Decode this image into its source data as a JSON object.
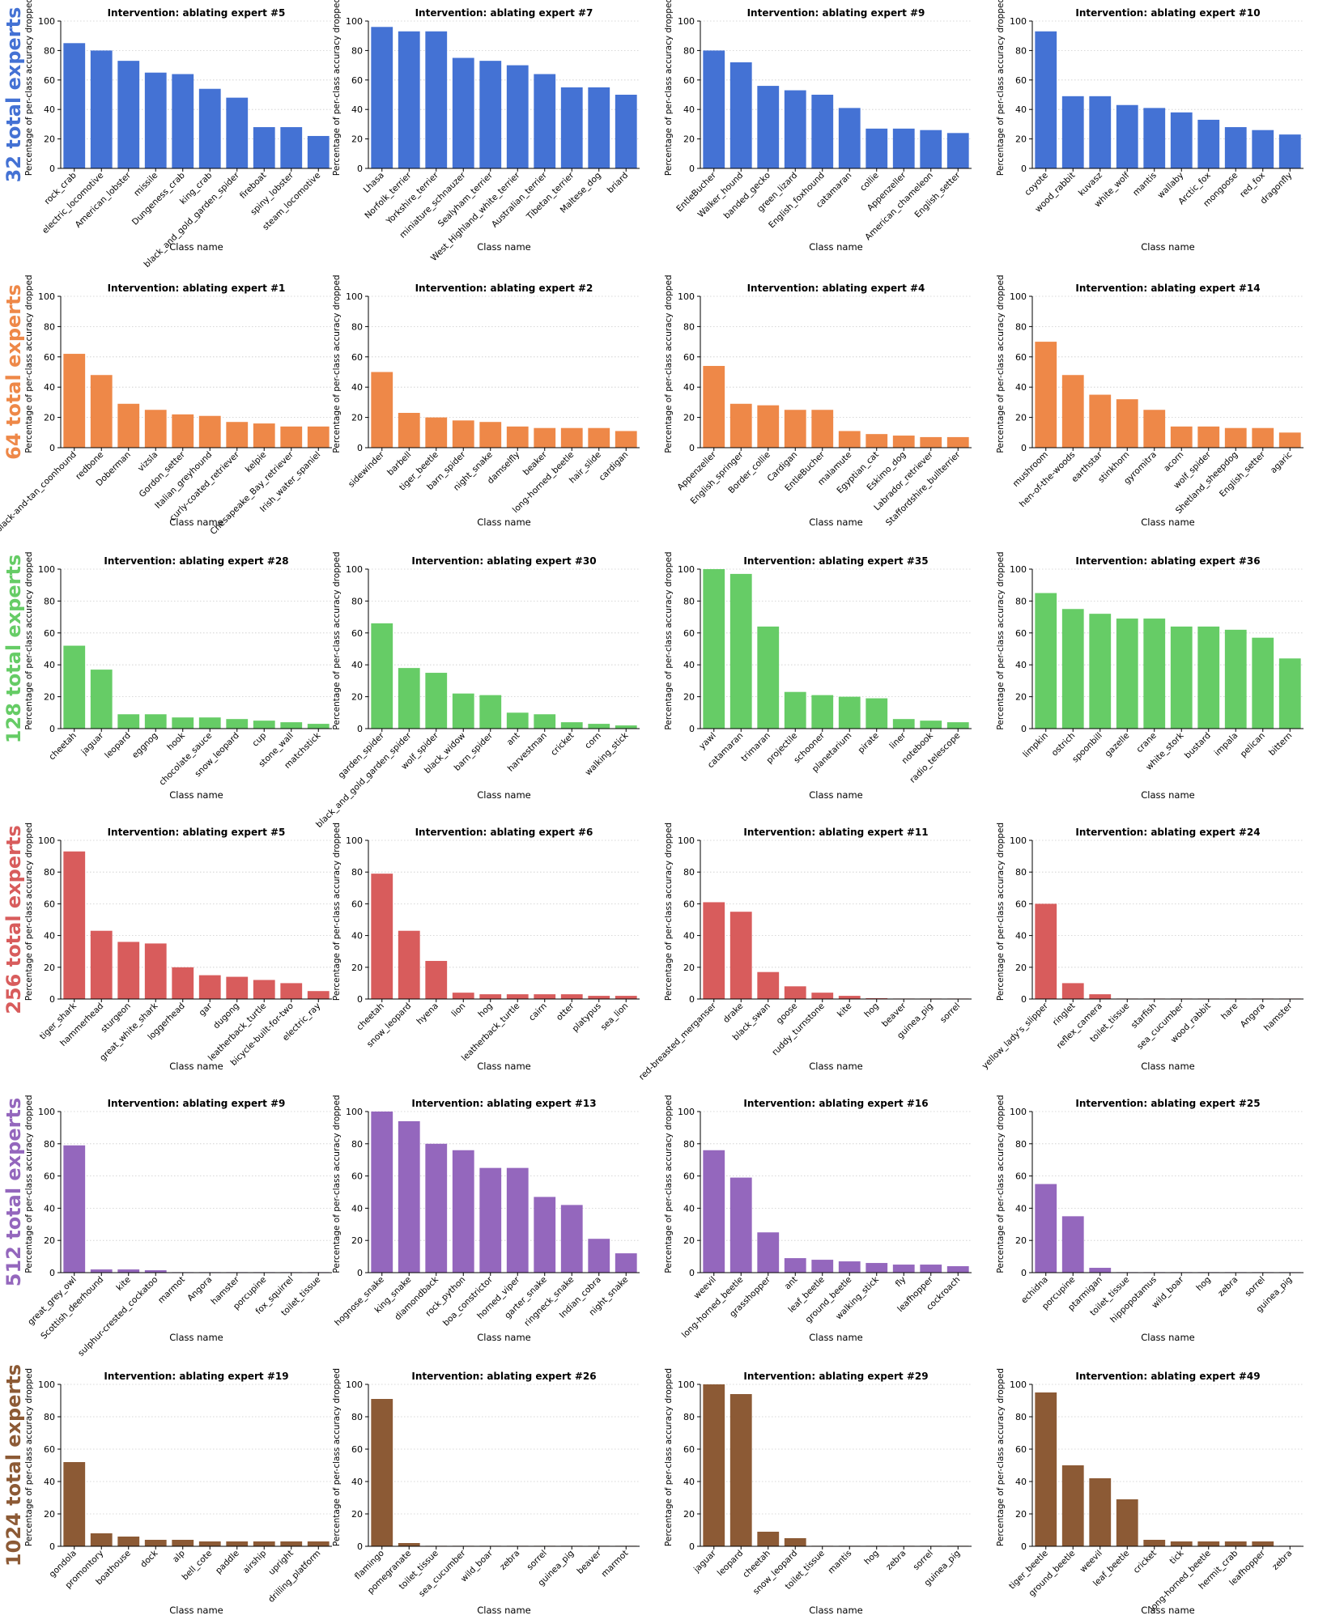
{
  "chart_data": [
    {
      "type": "bar",
      "title": "Intervention: ablating expert #5",
      "xlabel": "Class name",
      "ylabel": "Percentage of per-class accuracy dropped",
      "ylim": [
        0,
        100
      ],
      "yticks": [
        0,
        20,
        40,
        60,
        80,
        100
      ],
      "color": "#4472d4",
      "categories": [
        "rock_crab",
        "electric_locomotive",
        "American_lobster",
        "missile",
        "Dungeness_crab",
        "king_crab",
        "black_and_gold_garden_spider",
        "fireboat",
        "spiny_lobster",
        "steam_locomotive"
      ],
      "values": [
        85,
        80,
        73,
        65,
        64,
        54,
        48,
        28,
        28,
        22
      ]
    },
    {
      "type": "bar",
      "title": "Intervention: ablating expert #7",
      "xlabel": "Class name",
      "ylabel": "Percentage of per-class accuracy dropped",
      "ylim": [
        0,
        100
      ],
      "yticks": [
        0,
        20,
        40,
        60,
        80,
        100
      ],
      "color": "#4472d4",
      "categories": [
        "Lhasa",
        "Norfolk_terrier",
        "Yorkshire_terrier",
        "miniature_schnauzer",
        "Sealyham_terrier",
        "West_Highland_white_terrier",
        "Australian_terrier",
        "Tibetan_terrier",
        "Maltese_dog",
        "briard"
      ],
      "values": [
        96,
        93,
        93,
        75,
        73,
        70,
        64,
        55,
        55,
        50
      ]
    },
    {
      "type": "bar",
      "title": "Intervention: ablating expert #9",
      "xlabel": "Class name",
      "ylabel": "Percentage of per-class accuracy dropped",
      "ylim": [
        0,
        100
      ],
      "yticks": [
        0,
        20,
        40,
        60,
        80,
        100
      ],
      "color": "#4472d4",
      "categories": [
        "EntleBucher",
        "Walker_hound",
        "banded_gecko",
        "green_lizard",
        "English_foxhound",
        "catamaran",
        "collie",
        "Appenzeller",
        "American_chameleon",
        "English_setter"
      ],
      "values": [
        80,
        72,
        56,
        53,
        50,
        41,
        27,
        27,
        26,
        24
      ]
    },
    {
      "type": "bar",
      "title": "Intervention: ablating expert #10",
      "xlabel": "Class name",
      "ylabel": "Percentage of per-class accuracy dropped",
      "ylim": [
        0,
        100
      ],
      "yticks": [
        0,
        20,
        40,
        60,
        80,
        100
      ],
      "color": "#4472d4",
      "categories": [
        "coyote",
        "wood_rabbit",
        "kuvasz",
        "white_wolf",
        "mantis",
        "wallaby",
        "Arctic_fox",
        "mongoose",
        "red_fox",
        "dragonfly"
      ],
      "values": [
        93,
        49,
        49,
        43,
        41,
        38,
        33,
        28,
        26,
        23
      ]
    },
    {
      "type": "bar",
      "title": "Intervention: ablating expert #1",
      "xlabel": "Class name",
      "ylabel": "Percentage of per-class accuracy dropped",
      "ylim": [
        0,
        100
      ],
      "yticks": [
        0,
        20,
        40,
        60,
        80,
        100
      ],
      "color": "#ee8848",
      "categories": [
        "black-and-tan_coonhound",
        "redbone",
        "Doberman",
        "vizsla",
        "Gordon_setter",
        "Italian_greyhound",
        "curly-coated_retriever",
        "kelpie",
        "Chesapeake_Bay_retriever",
        "Irish_water_spaniel"
      ],
      "values": [
        62,
        48,
        29,
        25,
        22,
        21,
        17,
        16,
        14,
        14
      ]
    },
    {
      "type": "bar",
      "title": "Intervention: ablating expert #2",
      "xlabel": "Class name",
      "ylabel": "Percentage of per-class accuracy dropped",
      "ylim": [
        0,
        100
      ],
      "yticks": [
        0,
        20,
        40,
        60,
        80,
        100
      ],
      "color": "#ee8848",
      "categories": [
        "sidewinder",
        "barbell",
        "tiger_beetle",
        "barn_spider",
        "night_snake",
        "damselfly",
        "beaker",
        "long-horned_beetle",
        "hair_slide",
        "cardigan"
      ],
      "values": [
        50,
        23,
        20,
        18,
        17,
        14,
        13,
        13,
        13,
        11
      ]
    },
    {
      "type": "bar",
      "title": "Intervention: ablating expert #4",
      "xlabel": "Class name",
      "ylabel": "Percentage of per-class accuracy dropped",
      "ylim": [
        0,
        100
      ],
      "yticks": [
        0,
        20,
        40,
        60,
        80,
        100
      ],
      "color": "#ee8848",
      "categories": [
        "Appenzeller",
        "English_springer",
        "Border_collie",
        "Cardigan",
        "EntleBucher",
        "malamute",
        "Egyptian_cat",
        "Eskimo_dog",
        "Labrador_retriever",
        "Staffordshire_bullterrier"
      ],
      "values": [
        54,
        29,
        28,
        25,
        25,
        11,
        9,
        8,
        7,
        7
      ]
    },
    {
      "type": "bar",
      "title": "Intervention: ablating expert #14",
      "xlabel": "Class name",
      "ylabel": "Percentage of per-class accuracy dropped",
      "ylim": [
        0,
        100
      ],
      "yticks": [
        0,
        20,
        40,
        60,
        80,
        100
      ],
      "color": "#ee8848",
      "categories": [
        "mushroom",
        "hen-of-the-woods",
        "earthstar",
        "stinkhorn",
        "gyromitra",
        "acorn",
        "wolf_spider",
        "Shetland_sheepdog",
        "English_setter",
        "agaric"
      ],
      "values": [
        70,
        48,
        35,
        32,
        25,
        14,
        14,
        13,
        13,
        10
      ]
    },
    {
      "type": "bar",
      "title": "Intervention: ablating expert #28",
      "xlabel": "Class name",
      "ylabel": "Percentage of per-class accuracy dropped",
      "ylim": [
        0,
        100
      ],
      "yticks": [
        0,
        20,
        40,
        60,
        80,
        100
      ],
      "color": "#66cc66",
      "categories": [
        "cheetah",
        "jaguar",
        "leopard",
        "eggnog",
        "hook",
        "chocolate_sauce",
        "snow_leopard",
        "cup",
        "stone_wall",
        "matchstick"
      ],
      "values": [
        52,
        37,
        9,
        9,
        7,
        7,
        6,
        5,
        4,
        3
      ]
    },
    {
      "type": "bar",
      "title": "Intervention: ablating expert #30",
      "xlabel": "Class name",
      "ylabel": "Percentage of per-class accuracy dropped",
      "ylim": [
        0,
        100
      ],
      "yticks": [
        0,
        20,
        40,
        60,
        80,
        100
      ],
      "color": "#66cc66",
      "categories": [
        "garden_spider",
        "black_and_gold_garden_spider",
        "wolf_spider",
        "black_widow",
        "barn_spider",
        "ant",
        "harvestman",
        "cricket",
        "corn",
        "walking_stick"
      ],
      "values": [
        66,
        38,
        35,
        22,
        21,
        10,
        9,
        4,
        3,
        2
      ]
    },
    {
      "type": "bar",
      "title": "Intervention: ablating expert #35",
      "xlabel": "Class name",
      "ylabel": "Percentage of per-class accuracy dropped",
      "ylim": [
        0,
        100
      ],
      "yticks": [
        0,
        20,
        40,
        60,
        80,
        100
      ],
      "color": "#66cc66",
      "categories": [
        "yawl",
        "catamaran",
        "trimaran",
        "projectile",
        "schooner",
        "planetarium",
        "pirate",
        "liner",
        "notebook",
        "radio_telescope"
      ],
      "values": [
        100,
        97,
        64,
        23,
        21,
        20,
        19,
        6,
        5,
        4
      ]
    },
    {
      "type": "bar",
      "title": "Intervention: ablating expert #36",
      "xlabel": "Class name",
      "ylabel": "Percentage of per-class accuracy dropped",
      "ylim": [
        0,
        100
      ],
      "yticks": [
        0,
        20,
        40,
        60,
        80,
        100
      ],
      "color": "#66cc66",
      "categories": [
        "limpkin",
        "ostrich",
        "spoonbill",
        "gazelle",
        "crane",
        "white_stork",
        "bustard",
        "impala",
        "pelican",
        "bittern"
      ],
      "values": [
        85,
        75,
        72,
        69,
        69,
        64,
        64,
        62,
        57,
        44
      ]
    },
    {
      "type": "bar",
      "title": "Intervention: ablating expert #5",
      "xlabel": "Class name",
      "ylabel": "Percentage of per-class accuracy dropped",
      "ylim": [
        0,
        100
      ],
      "yticks": [
        0,
        20,
        40,
        60,
        80,
        100
      ],
      "color": "#d85c5c",
      "categories": [
        "tiger_shark",
        "hammerhead",
        "sturgeon",
        "great_white_shark",
        "loggerhead",
        "gar",
        "dugong",
        "leatherback_turtle",
        "bicycle-built-for-two",
        "electric_ray"
      ],
      "values": [
        93,
        43,
        36,
        35,
        20,
        15,
        14,
        12,
        10,
        5
      ]
    },
    {
      "type": "bar",
      "title": "Intervention: ablating expert #6",
      "xlabel": "Class name",
      "ylabel": "Percentage of per-class accuracy dropped",
      "ylim": [
        0,
        100
      ],
      "yticks": [
        0,
        20,
        40,
        60,
        80,
        100
      ],
      "color": "#d85c5c",
      "categories": [
        "cheetah",
        "snow_leopard",
        "hyena",
        "lion",
        "hog",
        "leatherback_turtle",
        "cairn",
        "otter",
        "platypus",
        "sea_lion"
      ],
      "values": [
        79,
        43,
        24,
        4,
        3,
        3,
        3,
        3,
        2,
        2
      ]
    },
    {
      "type": "bar",
      "title": "Intervention: ablating expert #11",
      "xlabel": "Class name",
      "ylabel": "Percentage of per-class accuracy dropped",
      "ylim": [
        0,
        100
      ],
      "yticks": [
        0,
        20,
        40,
        60,
        80,
        100
      ],
      "color": "#d85c5c",
      "categories": [
        "red-breasted_merganser",
        "drake",
        "black_swan",
        "goose",
        "ruddy_turnstone",
        "kite",
        "hog",
        "beaver",
        "guinea_pig",
        "sorrel"
      ],
      "values": [
        61,
        55,
        17,
        8,
        4,
        2,
        0.5,
        0.3,
        0.3,
        0.3
      ]
    },
    {
      "type": "bar",
      "title": "Intervention: ablating expert #24",
      "xlabel": "Class name",
      "ylabel": "Percentage of per-class accuracy dropped",
      "ylim": [
        0,
        100
      ],
      "yticks": [
        0,
        20,
        40,
        60,
        80,
        100
      ],
      "color": "#d85c5c",
      "categories": [
        "yellow_lady's_slipper",
        "ringlet",
        "reflex_camera",
        "toilet_tissue",
        "starfish",
        "sea_cucumber",
        "wood_rabbit",
        "hare",
        "Angora",
        "hamster"
      ],
      "values": [
        60,
        10,
        3,
        0.3,
        0.3,
        0.3,
        0.3,
        0.3,
        0.3,
        0.3
      ]
    },
    {
      "type": "bar",
      "title": "Intervention: ablating expert #9",
      "xlabel": "Class name",
      "ylabel": "Percentage of per-class accuracy dropped",
      "ylim": [
        0,
        100
      ],
      "yticks": [
        0,
        20,
        40,
        60,
        80,
        100
      ],
      "color": "#9467bd",
      "categories": [
        "great_grey_owl",
        "Scottish_deerhound",
        "kite",
        "sulphur-crested_cockatoo",
        "marmot",
        "Angora",
        "hamster",
        "porcupine",
        "fox_squirrel",
        "toilet_tissue"
      ],
      "values": [
        79,
        2,
        2,
        1.5,
        0.3,
        0.3,
        0.3,
        0.3,
        0.3,
        0.3
      ]
    },
    {
      "type": "bar",
      "title": "Intervention: ablating expert #13",
      "xlabel": "Class name",
      "ylabel": "Percentage of per-class accuracy dropped",
      "ylim": [
        0,
        100
      ],
      "yticks": [
        0,
        20,
        40,
        60,
        80,
        100
      ],
      "color": "#9467bd",
      "categories": [
        "hognose_snake",
        "king_snake",
        "diamondback",
        "rock_python",
        "boa_constrictor",
        "horned_viper",
        "garter_snake",
        "ringneck_snake",
        "Indian_cobra",
        "night_snake"
      ],
      "values": [
        100,
        94,
        80,
        76,
        65,
        65,
        47,
        42,
        21,
        12
      ]
    },
    {
      "type": "bar",
      "title": "Intervention: ablating expert #16",
      "xlabel": "Class name",
      "ylabel": "Percentage of per-class accuracy dropped",
      "ylim": [
        0,
        100
      ],
      "yticks": [
        0,
        20,
        40,
        60,
        80,
        100
      ],
      "color": "#9467bd",
      "categories": [
        "weevil",
        "long-horned_beetle",
        "grasshopper",
        "ant",
        "leaf_beetle",
        "ground_beetle",
        "walking_stick",
        "fly",
        "leafhopper",
        "cockroach"
      ],
      "values": [
        76,
        59,
        25,
        9,
        8,
        7,
        6,
        5,
        5,
        4
      ]
    },
    {
      "type": "bar",
      "title": "Intervention: ablating expert #25",
      "xlabel": "Class name",
      "ylabel": "Percentage of per-class accuracy dropped",
      "ylim": [
        0,
        100
      ],
      "yticks": [
        0,
        20,
        40,
        60,
        80,
        100
      ],
      "color": "#9467bd",
      "categories": [
        "echidna",
        "porcupine",
        "ptarmigan",
        "toilet_tissue",
        "hippopotamus",
        "wild_boar",
        "hog",
        "zebra",
        "sorrel",
        "guinea_pig"
      ],
      "values": [
        55,
        35,
        3,
        0.3,
        0.3,
        0.3,
        0.3,
        0.3,
        0.3,
        0.3
      ]
    },
    {
      "type": "bar",
      "title": "Intervention: ablating expert #19",
      "xlabel": "Class name",
      "ylabel": "Percentage of per-class accuracy dropped",
      "ylim": [
        0,
        100
      ],
      "yticks": [
        0,
        20,
        40,
        60,
        80,
        100
      ],
      "color": "#8c5a35",
      "categories": [
        "gondola",
        "promontory",
        "boathouse",
        "dock",
        "alp",
        "bell_cote",
        "paddle",
        "airship",
        "upright",
        "drilling_platform"
      ],
      "values": [
        52,
        8,
        6,
        4,
        4,
        3,
        3,
        3,
        3,
        3
      ]
    },
    {
      "type": "bar",
      "title": "Intervention: ablating expert #26",
      "xlabel": "Class name",
      "ylabel": "Percentage of per-class accuracy dropped",
      "ylim": [
        0,
        100
      ],
      "yticks": [
        0,
        20,
        40,
        60,
        80,
        100
      ],
      "color": "#8c5a35",
      "categories": [
        "flamingo",
        "pomegranate",
        "toilet_tissue",
        "sea_cucumber",
        "wild_boar",
        "zebra",
        "sorrel",
        "guinea_pig",
        "beaver",
        "marmot"
      ],
      "values": [
        91,
        2,
        0.3,
        0.3,
        0.3,
        0.3,
        0.3,
        0.3,
        0.3,
        0.3
      ]
    },
    {
      "type": "bar",
      "title": "Intervention: ablating expert #29",
      "xlabel": "Class name",
      "ylabel": "Percentage of per-class accuracy dropped",
      "ylim": [
        0,
        100
      ],
      "yticks": [
        0,
        20,
        40,
        60,
        80,
        100
      ],
      "color": "#8c5a35",
      "categories": [
        "jaguar",
        "leopard",
        "cheetah",
        "snow_leopard",
        "toilet_tissue",
        "mantis",
        "hog",
        "zebra",
        "sorrel",
        "guinea_pig"
      ],
      "values": [
        100,
        94,
        9,
        5,
        0.3,
        0.3,
        0.3,
        0.3,
        0.3,
        0.3
      ]
    },
    {
      "type": "bar",
      "title": "Intervention: ablating expert #49",
      "xlabel": "Class name",
      "ylabel": "Percentage of per-class accuracy dropped",
      "ylim": [
        0,
        100
      ],
      "yticks": [
        0,
        20,
        40,
        60,
        80,
        100
      ],
      "color": "#8c5a35",
      "categories": [
        "tiger_beetle",
        "ground_beetle",
        "weevil",
        "leaf_beetle",
        "cricket",
        "tick",
        "long-horned_beetle",
        "hermit_crab",
        "leafhopper",
        "zebra"
      ],
      "values": [
        95,
        50,
        42,
        29,
        4,
        3,
        3,
        3,
        3,
        0.3
      ]
    }
  ],
  "row_labels": [
    {
      "text": "32 total experts",
      "color": "#4472d4"
    },
    {
      "text": "64 total experts",
      "color": "#ee8848"
    },
    {
      "text": "128 total experts",
      "color": "#66cc66"
    },
    {
      "text": "256 total experts",
      "color": "#d85c5c"
    },
    {
      "text": "512 total experts",
      "color": "#9467bd"
    },
    {
      "text": "1024 total experts",
      "color": "#8c5a35"
    }
  ]
}
